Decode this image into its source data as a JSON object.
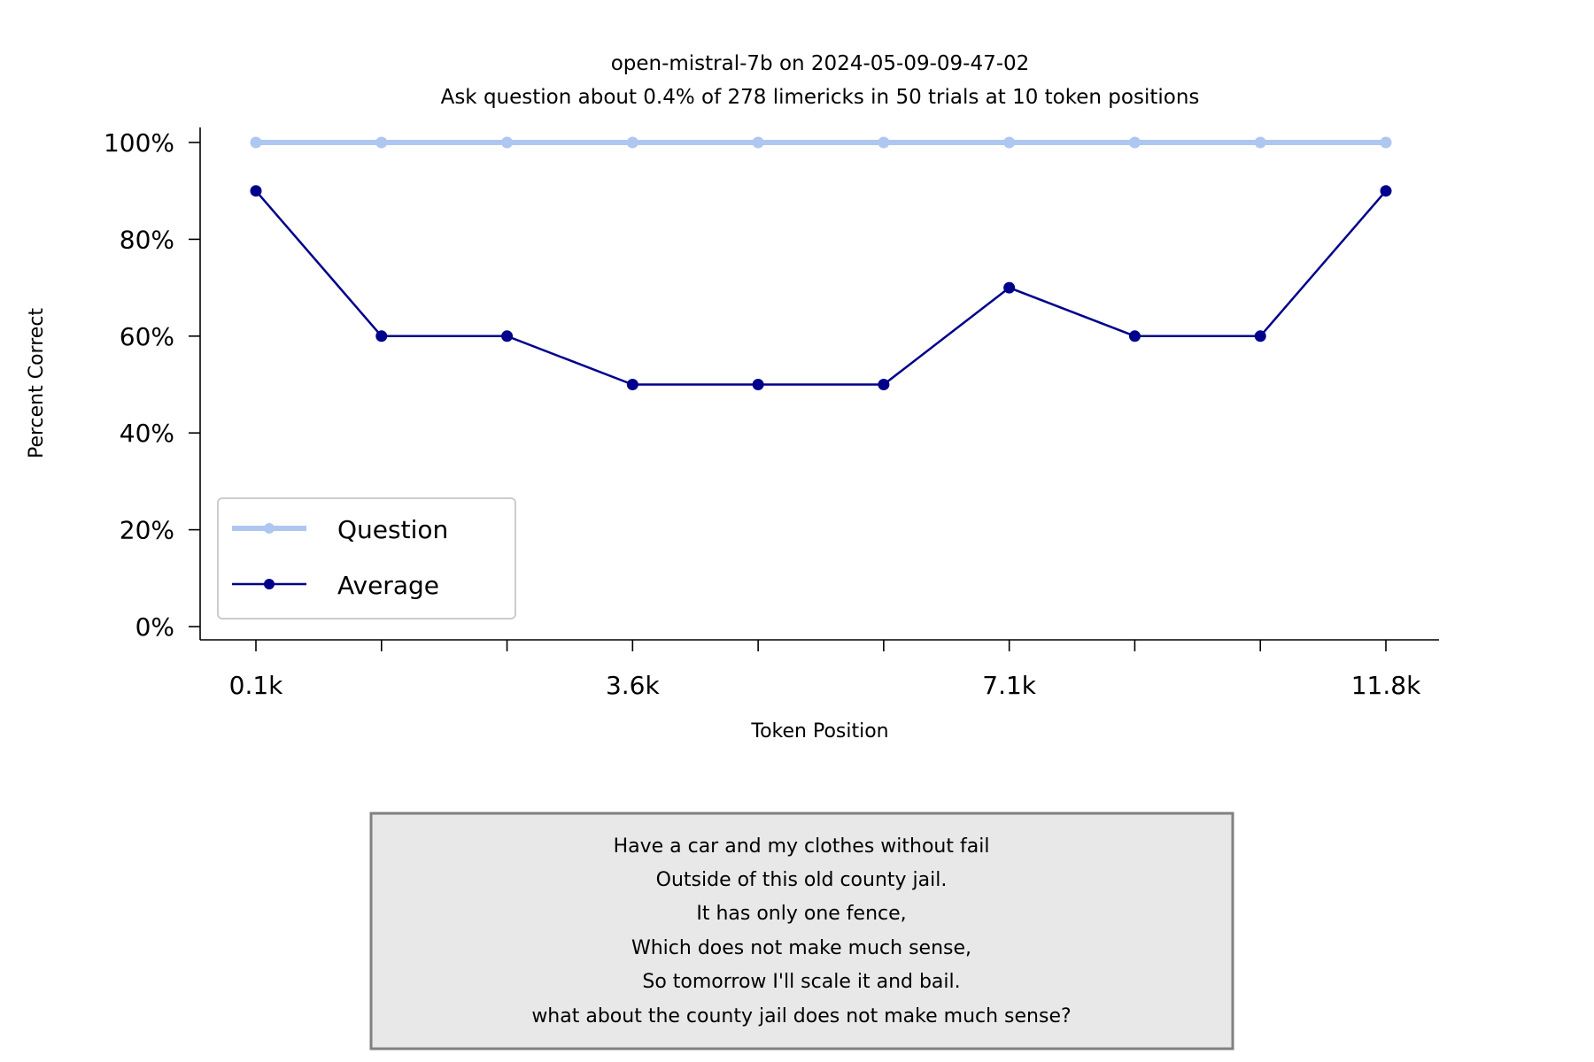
{
  "chart_data": {
    "type": "line",
    "title": "open-mistral-7b on 2024-05-09-09-47-02",
    "subtitle": "Ask question about 0.4% of 278 limericks in 50 trials at 10 token positions",
    "xlabel": "Token Position",
    "ylabel": "Percent Correct",
    "ylim": [
      0,
      100
    ],
    "yticks": [
      "0%",
      "20%",
      "40%",
      "60%",
      "80%",
      "100%"
    ],
    "xtick_labels": [
      "0.1k",
      "",
      "",
      "3.6k",
      "",
      "",
      "7.1k",
      "",
      "",
      "11.8k"
    ],
    "legend_position": "lower-left",
    "grid": false,
    "series": [
      {
        "name": "Question",
        "color": "#aec7f0",
        "values": [
          100,
          100,
          100,
          100,
          100,
          100,
          100,
          100,
          100,
          100
        ]
      },
      {
        "name": "Average",
        "color": "#00008b",
        "values": [
          90,
          60,
          60,
          50,
          50,
          50,
          70,
          60,
          60,
          90
        ]
      }
    ]
  },
  "note": {
    "lines": [
      "Have a car and my clothes without fail",
      "Outside of this old county jail.",
      "It has only one fence,",
      "Which does not make much sense,",
      "So tomorrow I'll scale it and bail.",
      "what about the county jail does not make much sense?"
    ]
  }
}
